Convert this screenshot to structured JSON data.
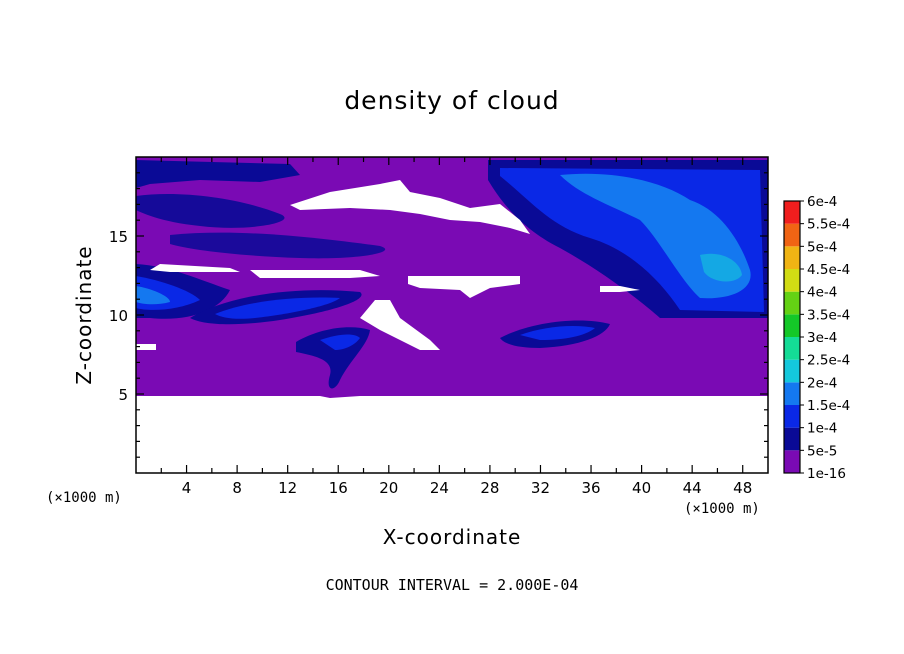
{
  "chart_data": {
    "type": "heatmap",
    "title": "density of cloud",
    "xlabel": "X-coordinate",
    "ylabel": "Z-coordinate",
    "x_unit_label": "(×1000 m)",
    "footer": "CONTOUR INTERVAL = 2.000E-04",
    "xlim": [
      0,
      50
    ],
    "ylim": [
      0,
      20
    ],
    "x_ticks": [
      4,
      8,
      12,
      16,
      20,
      24,
      28,
      32,
      36,
      40,
      44,
      48
    ],
    "y_ticks": [
      5,
      10,
      15
    ],
    "colorbar": {
      "levels": [
        "1e-16",
        "5e-5",
        "1e-4",
        "1.5e-4",
        "2e-4",
        "2.5e-4",
        "3e-4",
        "3.5e-4",
        "4e-4",
        "4.5e-4",
        "5e-4",
        "5.5e-4",
        "6e-4"
      ],
      "colors": [
        "#7a0ab4",
        "#0a0a96",
        "#0a28e6",
        "#1478f0",
        "#14c8dc",
        "#14dc96",
        "#14c828",
        "#64d214",
        "#d2dc14",
        "#f0b414",
        "#f06414",
        "#f01e1e",
        "#f08c8c"
      ]
    },
    "cloud_base_z": 5,
    "cloud_top_z": 20
  }
}
